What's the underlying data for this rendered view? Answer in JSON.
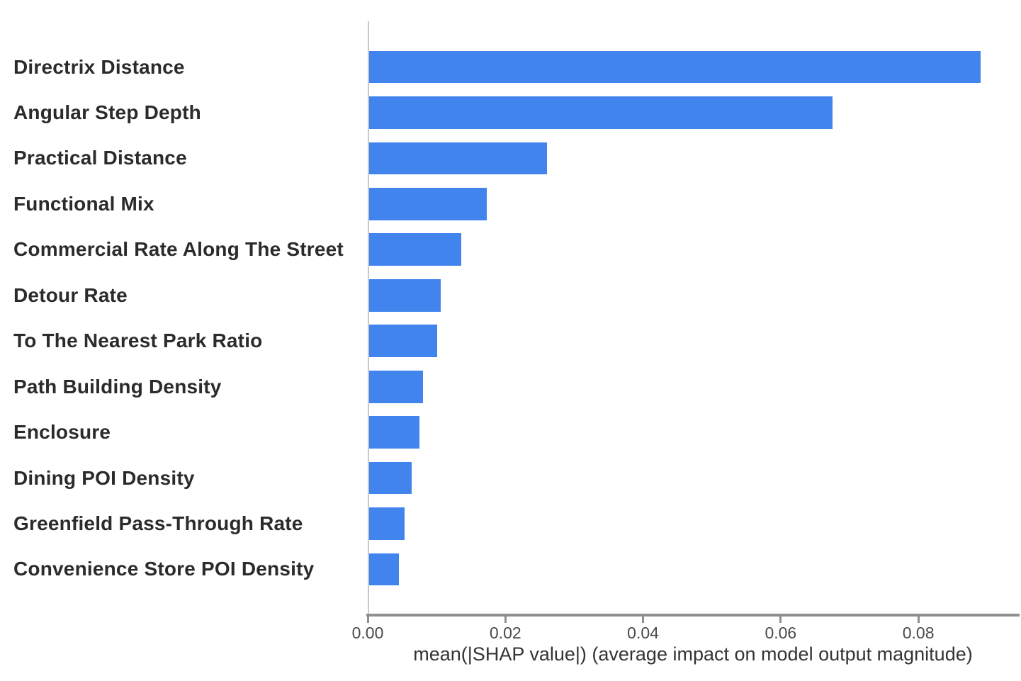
{
  "chart_data": {
    "type": "bar",
    "orientation": "horizontal",
    "title": "",
    "xlabel": "mean(|SHAP value|) (average impact on model output magnitude)",
    "ylabel": "",
    "categories": [
      "Directrix Distance",
      "Angular Step Depth",
      "Practical Distance",
      "Functional Mix",
      "Commercial Rate Along The Street",
      "Detour Rate",
      "To The Nearest Park Ratio",
      "Path Building Density",
      "Enclosure",
      "Dining POI Density",
      "Greenfield Pass-Through Rate",
      "Convenience Store POI Density"
    ],
    "values": [
      0.089,
      0.0675,
      0.026,
      0.0173,
      0.0136,
      0.0106,
      0.0101,
      0.008,
      0.0075,
      0.0064,
      0.0054,
      0.0045
    ],
    "xlim": [
      0,
      0.0945
    ],
    "xticks": [
      {
        "value": 0.0,
        "label": "0.00"
      },
      {
        "value": 0.02,
        "label": "0.02"
      },
      {
        "value": 0.04,
        "label": "0.04"
      },
      {
        "value": 0.06,
        "label": "0.06"
      },
      {
        "value": 0.08,
        "label": "0.08"
      }
    ],
    "grid": false,
    "legend": null,
    "colors": {
      "bar": "#4184ee",
      "left_spine": "#c9c9c9",
      "bottom_spine": "#8f8f8f",
      "tick_text": "#4a4a4a",
      "category_text": "#2b2b2b",
      "axis_label_text": "#343434",
      "background": "#ffffff"
    }
  }
}
